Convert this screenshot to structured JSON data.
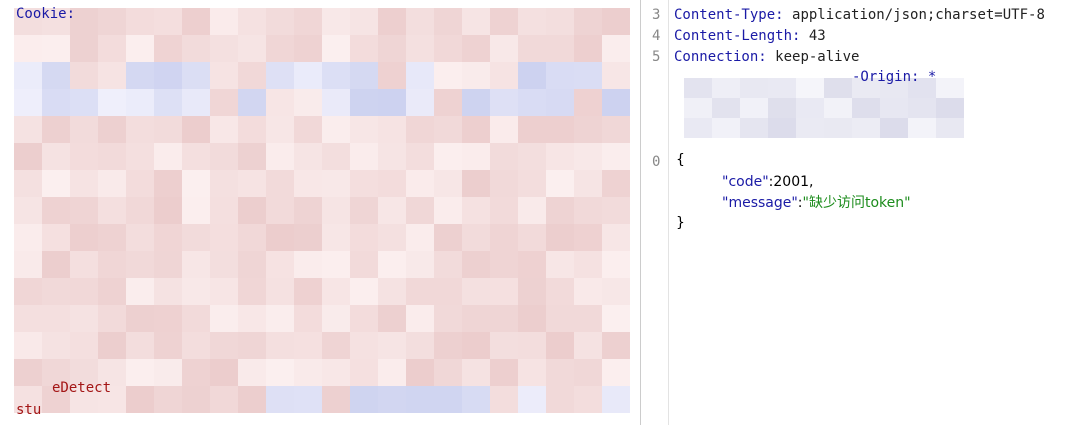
{
  "request": {
    "cookie_label": "Cookie:",
    "fragment": "eDetect",
    "last_line": "stu"
  },
  "response": {
    "header_lines": [
      {
        "number": "3",
        "name": "Content-Type:",
        "value": "application/json;charset=UTF-8"
      },
      {
        "number": "4",
        "name": "Content-Length:",
        "value": "43"
      },
      {
        "number": "5",
        "name": "Connection:",
        "value": "keep-alive"
      }
    ],
    "partial_header": "-Origin: *",
    "body_line_number": "0",
    "body": {
      "open": "{",
      "code_key": "\"code\"",
      "code_value": "2001,",
      "message_key": "\"message\"",
      "message_value": "\"缺少访问token\"",
      "close": "}"
    }
  }
}
